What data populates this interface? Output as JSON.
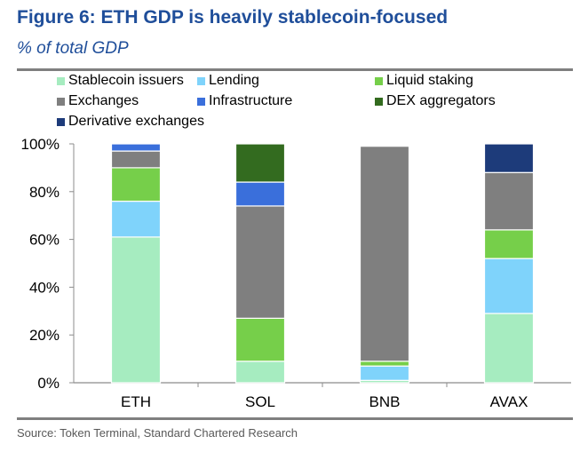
{
  "header": {
    "title": "Figure 6: ETH GDP is heavily stablecoin-focused",
    "subtitle": "% of total GDP"
  },
  "footer": {
    "source": "Source: Token Terminal, Standard Chartered Research"
  },
  "chart_data": {
    "type": "bar",
    "stacked": true,
    "title": "Figure 6: ETH GDP is heavily stablecoin-focused",
    "subtitle": "% of total GDP",
    "xlabel": "",
    "ylabel": "",
    "ylim": [
      0,
      100
    ],
    "yticks": [
      0,
      20,
      40,
      60,
      80,
      100
    ],
    "ytick_labels": [
      "0%",
      "20%",
      "40%",
      "60%",
      "80%",
      "100%"
    ],
    "grid": false,
    "legend_position": "top",
    "categories": [
      "ETH",
      "SOL",
      "BNB",
      "AVAX"
    ],
    "series": [
      {
        "name": "Stablecoin issuers",
        "color": "#a6ecc0",
        "values": [
          61,
          9,
          1,
          29
        ]
      },
      {
        "name": "Lending",
        "color": "#7fd3fb",
        "values": [
          15,
          0,
          6,
          23
        ]
      },
      {
        "name": "Liquid staking",
        "color": "#76cf4a",
        "values": [
          14,
          18,
          2,
          12
        ]
      },
      {
        "name": "Exchanges",
        "color": "#7f7f7f",
        "values": [
          7,
          47,
          90,
          24
        ]
      },
      {
        "name": "Infrastructure",
        "color": "#3a6fdb",
        "values": [
          3,
          10,
          0,
          0
        ]
      },
      {
        "name": "DEX aggregators",
        "color": "#336b1f",
        "values": [
          0,
          16,
          0,
          0
        ]
      },
      {
        "name": "Derivative exchanges",
        "color": "#1d3b7a",
        "values": [
          0,
          0,
          0,
          12
        ]
      }
    ]
  }
}
